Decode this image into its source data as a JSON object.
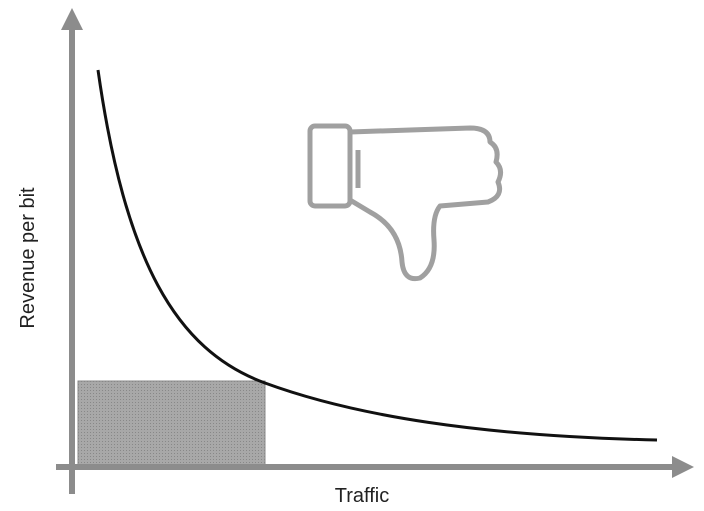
{
  "y_axis_label": "Revenue per bit",
  "x_axis_label": "Traffic"
}
